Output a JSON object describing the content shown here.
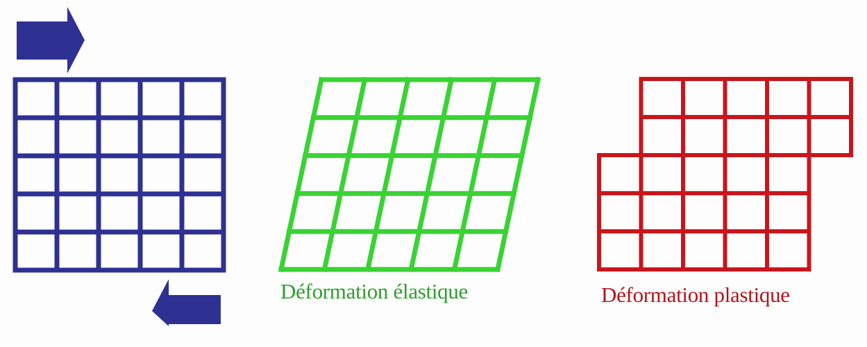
{
  "captions": {
    "elastic": "Déformation élastique",
    "plastic": "Déformation plastique"
  },
  "colors": {
    "original_grid": "#2e3192",
    "force_arrows": "#2e3192",
    "elastic_grid": "#39d334",
    "elastic_caption": "#2e9e2e",
    "plastic_grid": "#c8161d",
    "plastic_caption": "#b3141b",
    "background": "#fdfdfd"
  },
  "grid": {
    "rows": 5,
    "columns": 5
  },
  "plastic_shift": {
    "slipped_rows": 2,
    "offset_cells": 1
  }
}
